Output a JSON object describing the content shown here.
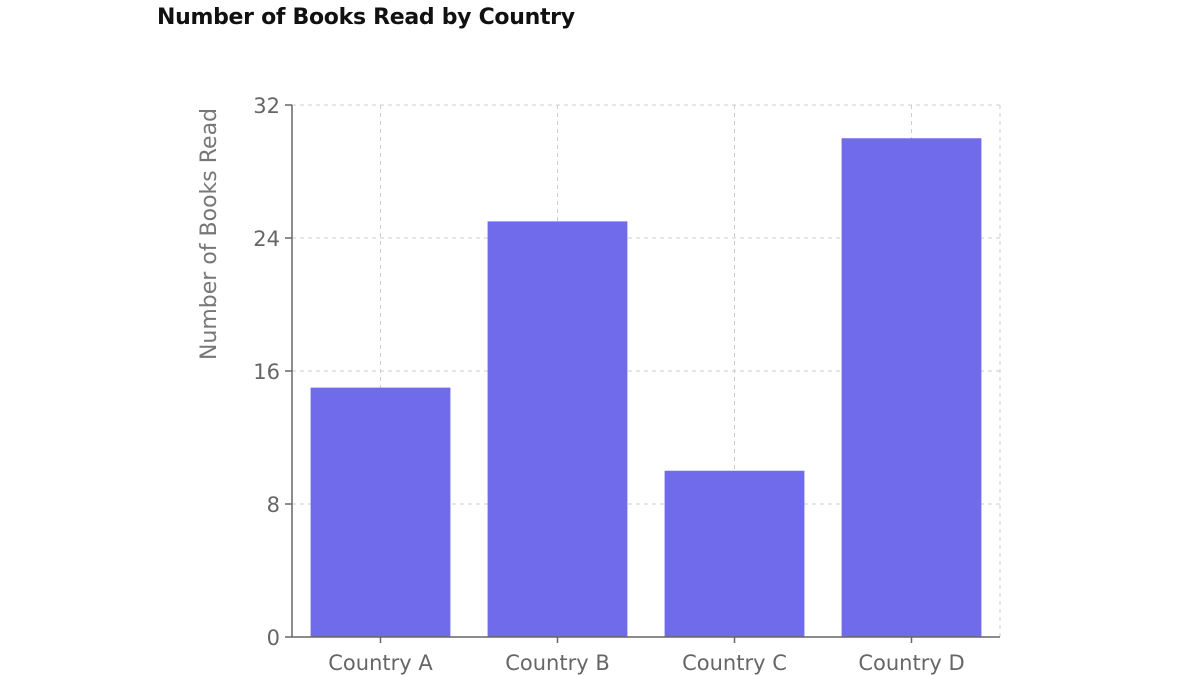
{
  "chart_data": {
    "type": "bar",
    "title": "Number of Books Read by Country",
    "xlabel": "",
    "ylabel": "Number of Books Read",
    "categories": [
      "Country A",
      "Country B",
      "Country C",
      "Country D"
    ],
    "values": [
      15,
      25,
      10,
      30
    ],
    "ylim": [
      0,
      32
    ],
    "yticks": [
      0,
      8,
      16,
      24,
      32
    ],
    "grid": true,
    "bar_color": "#706bea",
    "axis_color": "#666666",
    "grid_color": "#cccccc"
  }
}
